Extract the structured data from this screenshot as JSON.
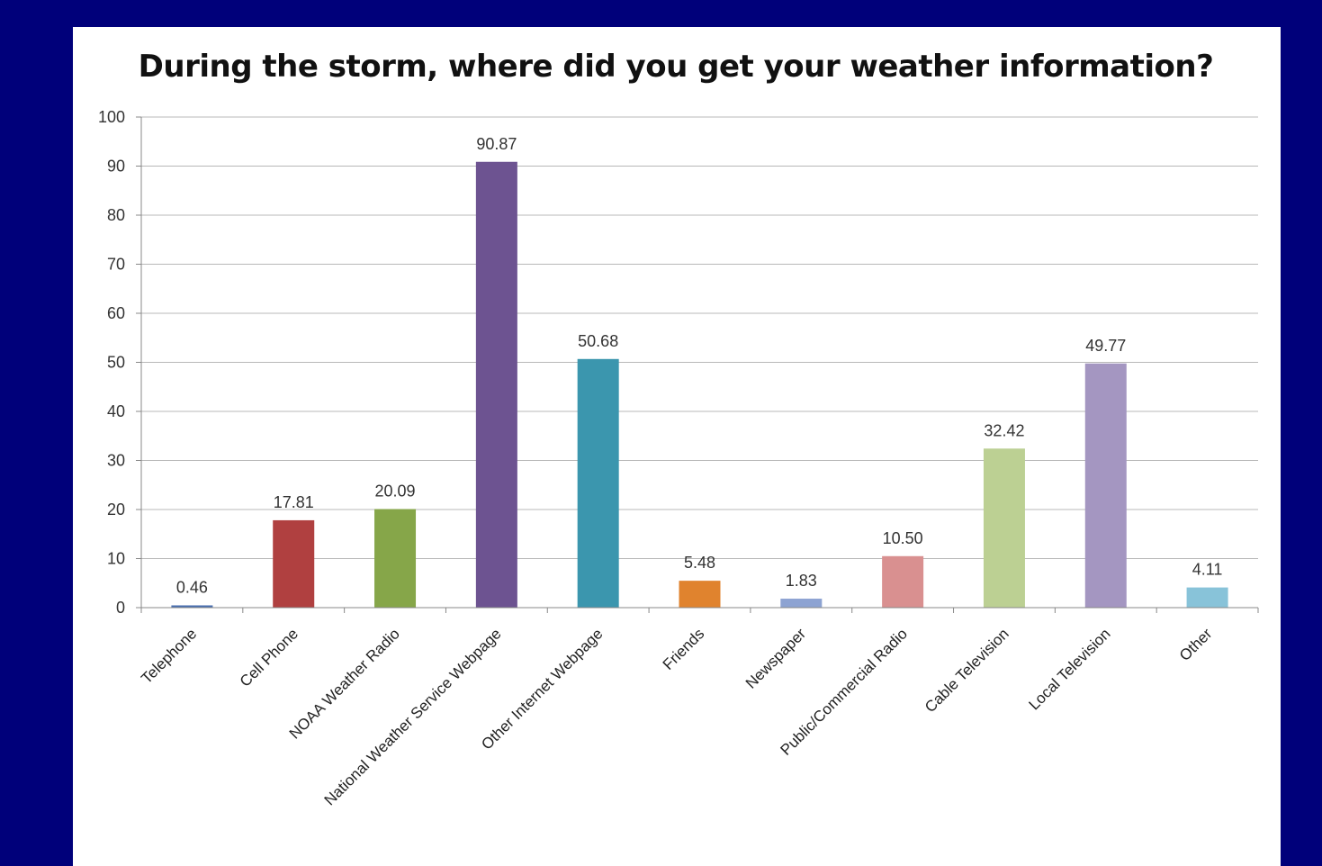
{
  "chart_data": {
    "type": "bar",
    "title": "During the storm, where did you get your weather information?",
    "xlabel": "",
    "ylabel": "",
    "ylim": [
      0,
      100
    ],
    "yticks": [
      0,
      10,
      20,
      30,
      40,
      50,
      60,
      70,
      80,
      90,
      100
    ],
    "grid": true,
    "legend": "none",
    "categories": [
      "Telephone",
      "Cell Phone",
      "NOAA Weather Radio",
      "National Weather Service Webpage",
      "Other Internet Webpage",
      "Friends",
      "Newspaper",
      "Public/Commercial Radio",
      "Cable Television",
      "Local Television",
      "Other"
    ],
    "values": [
      0.46,
      17.81,
      20.09,
      90.87,
      50.68,
      5.48,
      1.83,
      10.5,
      32.42,
      49.77,
      4.11
    ],
    "value_labels": [
      "0.46",
      "17.81",
      "20.09",
      "90.87",
      "50.68",
      "5.48",
      "1.83",
      "10.50",
      "32.42",
      "49.77",
      "4.11"
    ],
    "colors": [
      "#4a6fb0",
      "#b04040",
      "#86a649",
      "#6d5391",
      "#3b96ae",
      "#e0832e",
      "#8da3d2",
      "#d99090",
      "#bcd093",
      "#a496c1",
      "#88c3d9"
    ]
  }
}
